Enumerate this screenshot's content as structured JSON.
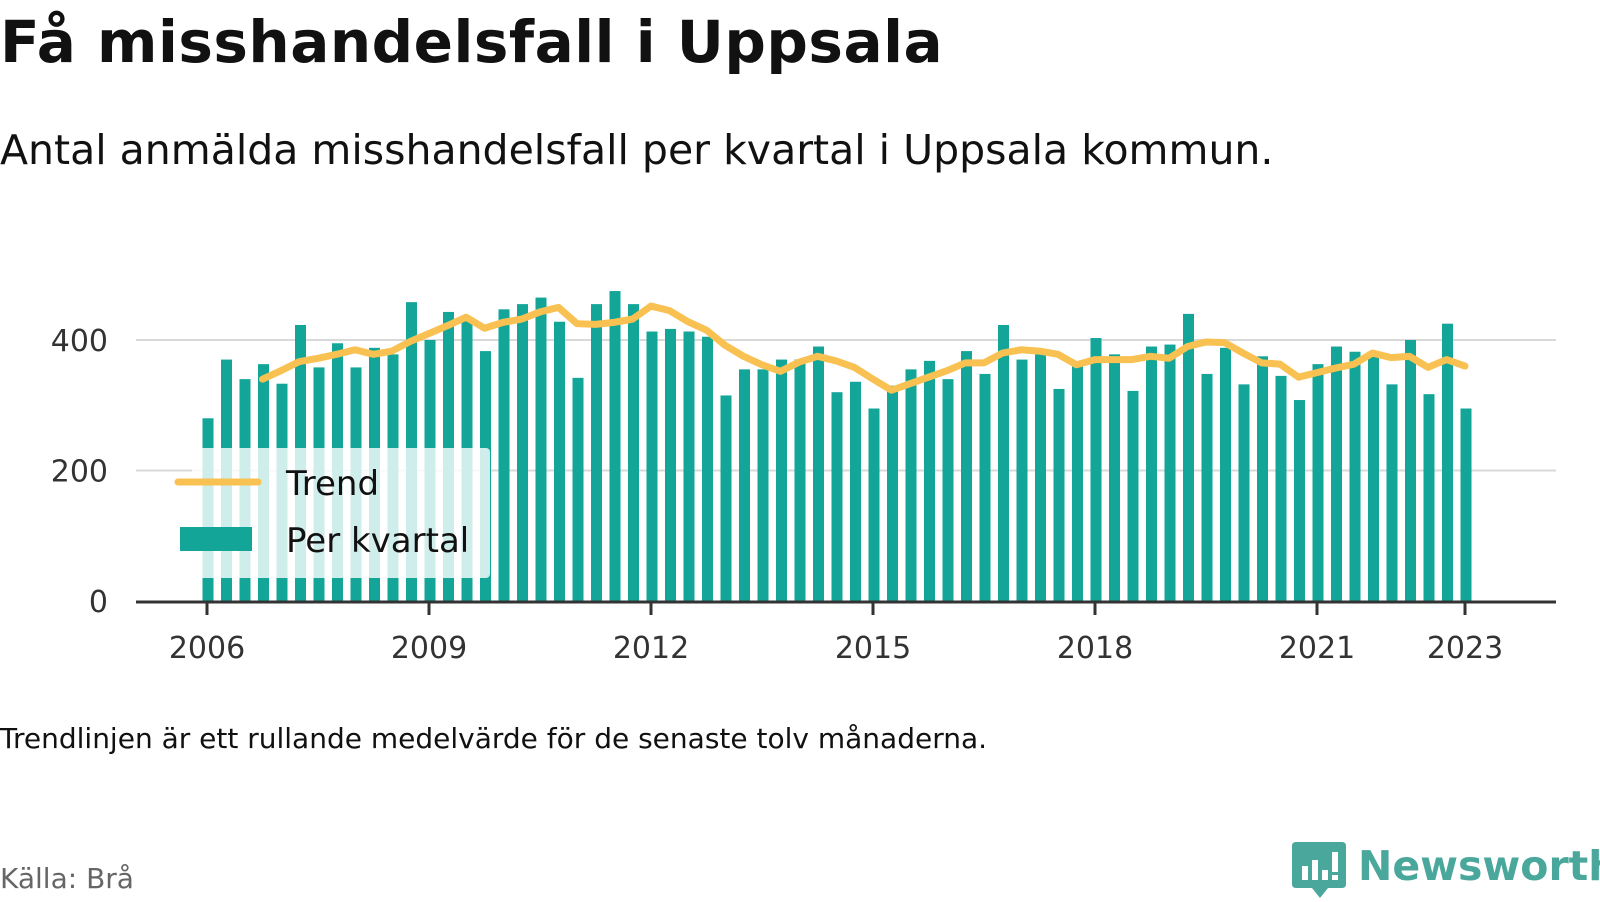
{
  "header": {
    "title": "Få misshandelsfall i Uppsala",
    "subtitle": "Antal anmälda misshandelsfall per kvartal i Uppsala kommun."
  },
  "footer": {
    "note": "Trendlinjen är ett rullande medelvärde för de senaste tolv månaderna.",
    "source": "Källa: Brå",
    "brand": "Newsworthy"
  },
  "colors": {
    "bar": "#12a598",
    "trend": "#f8c152",
    "grid": "#d9d9d9",
    "axis": "#333333",
    "brand": "#4aa79c"
  },
  "chart_data": {
    "type": "bar",
    "title": "Få misshandelsfall i Uppsala",
    "subtitle": "Antal anmälda misshandelsfall per kvartal i Uppsala kommun.",
    "ylim": [
      0,
      470
    ],
    "y_ticks": [
      0,
      200,
      400
    ],
    "y_tick_labels": [
      "0",
      "200",
      "400"
    ],
    "x_ticks": [
      2006,
      2009,
      2012,
      2015,
      2018,
      2021,
      2023
    ],
    "x_tick_labels": [
      "2006",
      "2009",
      "2012",
      "2015",
      "2018",
      "2021",
      "2023"
    ],
    "grid": true,
    "legend": {
      "position": "bottom-left",
      "entries": [
        "Trend",
        "Per kvartal"
      ]
    },
    "x": [
      2006.0,
      2006.25,
      2006.5,
      2006.75,
      2007.0,
      2007.25,
      2007.5,
      2007.75,
      2008.0,
      2008.25,
      2008.5,
      2008.75,
      2009.0,
      2009.25,
      2009.5,
      2009.75,
      2010.0,
      2010.25,
      2010.5,
      2010.75,
      2011.0,
      2011.25,
      2011.5,
      2011.75,
      2012.0,
      2012.25,
      2012.5,
      2012.75,
      2013.0,
      2013.25,
      2013.5,
      2013.75,
      2014.0,
      2014.25,
      2014.5,
      2014.75,
      2015.0,
      2015.25,
      2015.5,
      2015.75,
      2016.0,
      2016.25,
      2016.5,
      2016.75,
      2017.0,
      2017.25,
      2017.5,
      2017.75,
      2018.0,
      2018.25,
      2018.5,
      2018.75,
      2019.0,
      2019.25,
      2019.5,
      2019.75,
      2020.0,
      2020.25,
      2020.5,
      2020.75,
      2021.0,
      2021.25,
      2021.5,
      2021.75,
      2022.0,
      2022.25,
      2022.5,
      2022.75,
      2023.0
    ],
    "series": [
      {
        "name": "Per kvartal",
        "type": "bar",
        "values": [
          280,
          370,
          340,
          363,
          333,
          423,
          358,
          395,
          358,
          388,
          378,
          458,
          400,
          443,
          430,
          383,
          447,
          455,
          465,
          428,
          342,
          455,
          475,
          455,
          413,
          417,
          413,
          405,
          315,
          355,
          355,
          370,
          370,
          390,
          320,
          336,
          295,
          330,
          355,
          368,
          340,
          383,
          348,
          423,
          370,
          378,
          325,
          360,
          403,
          378,
          322,
          390,
          393,
          440,
          348,
          388,
          332,
          375,
          345,
          308,
          363,
          390,
          382,
          380,
          332,
          400,
          317,
          425,
          295
        ]
      },
      {
        "name": "Trend",
        "type": "line",
        "x": [
          2006.75,
          2007.0,
          2007.25,
          2007.5,
          2007.75,
          2008.0,
          2008.25,
          2008.5,
          2008.75,
          2009.0,
          2009.25,
          2009.5,
          2009.75,
          2010.0,
          2010.25,
          2010.5,
          2010.75,
          2011.0,
          2011.25,
          2011.5,
          2011.75,
          2012.0,
          2012.25,
          2012.5,
          2012.75,
          2013.0,
          2013.25,
          2013.5,
          2013.75,
          2014.0,
          2014.25,
          2014.5,
          2014.75,
          2015.0,
          2015.25,
          2015.5,
          2015.75,
          2016.0,
          2016.25,
          2016.5,
          2016.75,
          2017.0,
          2017.25,
          2017.5,
          2017.75,
          2018.0,
          2018.25,
          2018.5,
          2018.75,
          2019.0,
          2019.25,
          2019.5,
          2019.75,
          2020.0,
          2020.25,
          2020.5,
          2020.75,
          2021.0,
          2021.25,
          2021.5,
          2021.75,
          2022.0,
          2022.25,
          2022.5,
          2022.75,
          2023.0
        ],
        "values": [
          340,
          353,
          367,
          372,
          378,
          385,
          378,
          383,
          398,
          410,
          422,
          435,
          418,
          427,
          432,
          443,
          450,
          425,
          424,
          427,
          432,
          452,
          445,
          428,
          415,
          392,
          375,
          362,
          352,
          366,
          375,
          368,
          358,
          340,
          323,
          333,
          343,
          353,
          365,
          365,
          380,
          385,
          383,
          378,
          362,
          370,
          370,
          370,
          375,
          372,
          390,
          397,
          396,
          380,
          365,
          363,
          343,
          350,
          357,
          363,
          380,
          373,
          375,
          358,
          370,
          360
        ]
      }
    ]
  }
}
